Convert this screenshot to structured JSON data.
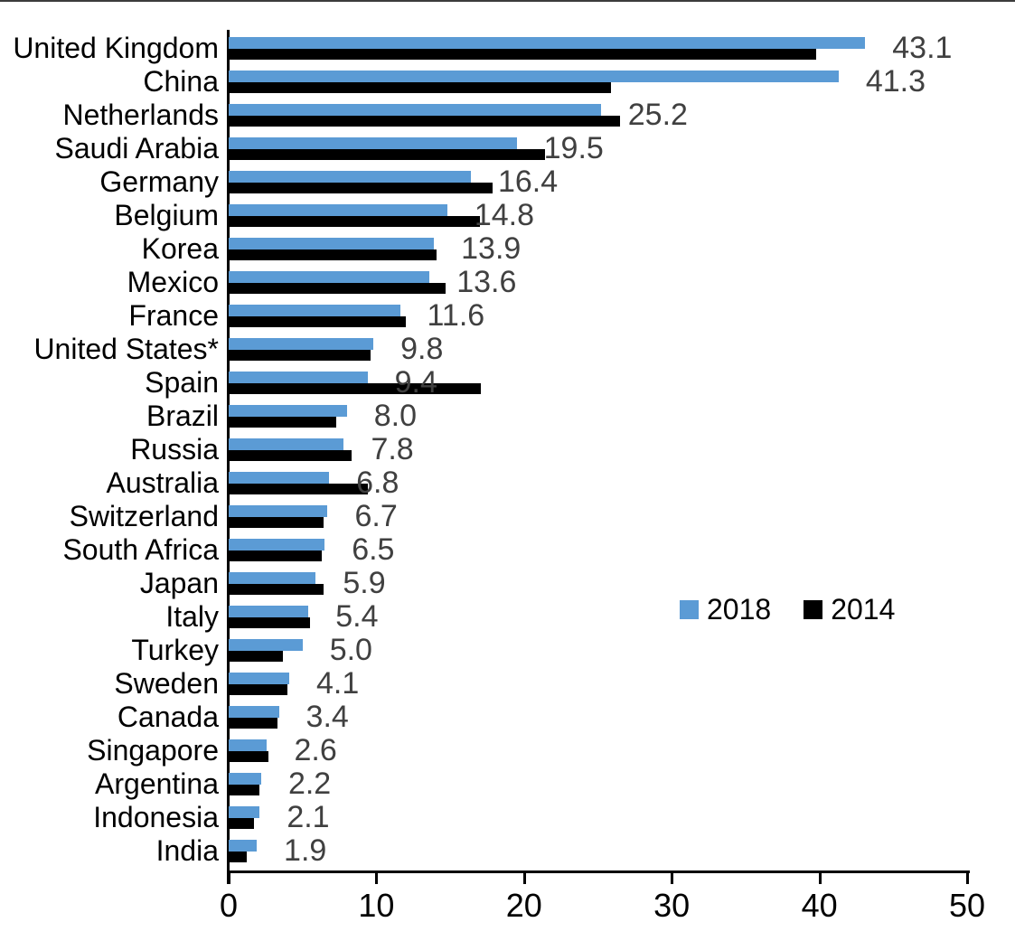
{
  "chart_data": {
    "type": "bar",
    "orientation": "horizontal",
    "title": "",
    "categories": [
      "United Kingdom",
      "China",
      "Netherlands",
      "Saudi Arabia",
      "Germany",
      "Belgium",
      "Korea",
      "Mexico",
      "France",
      "United States*",
      "Spain",
      "Brazil",
      "Russia",
      "Australia",
      "Switzerland",
      "South Africa",
      "Japan",
      "Italy",
      "Turkey",
      "Sweden",
      "Canada",
      "Singapore",
      "Argentina",
      "Indonesia",
      "India"
    ],
    "series": [
      {
        "name": "2018",
        "color": "#5B9BD5",
        "values": [
          43.1,
          41.3,
          25.2,
          19.5,
          16.4,
          14.8,
          13.9,
          13.6,
          11.6,
          9.8,
          9.4,
          8.0,
          7.8,
          6.8,
          6.7,
          6.5,
          5.9,
          5.4,
          5.0,
          4.1,
          3.4,
          2.6,
          2.2,
          2.1,
          1.9
        ],
        "labels": [
          "43.1",
          "41.3",
          "25.2",
          "19.5",
          "16.4",
          "14.8",
          "13.9",
          "13.6",
          "11.6",
          "9.8",
          "9.4",
          "8.0",
          "7.8",
          "6.8",
          "6.7",
          "6.5",
          "5.9",
          "5.4",
          "5.0",
          "4.1",
          "3.4",
          "2.6",
          "2.2",
          "2.1",
          "1.9"
        ],
        "data_labels": true
      },
      {
        "name": "2014",
        "color": "#000000",
        "values": [
          39.8,
          25.9,
          26.5,
          21.4,
          17.9,
          17.0,
          14.1,
          14.7,
          12.0,
          9.6,
          17.1,
          7.3,
          8.3,
          9.4,
          6.4,
          6.3,
          6.4,
          5.5,
          3.7,
          4.0,
          3.3,
          2.7,
          2.1,
          1.7,
          1.2
        ],
        "data_labels": false
      }
    ],
    "xlim": [
      0,
      50
    ],
    "x_ticks": [
      0,
      10,
      20,
      30,
      40,
      50
    ],
    "legend": {
      "position": "center-right",
      "entries": [
        "2018",
        "2014"
      ]
    },
    "value_label_color": "#404040",
    "axis_color": "#000000",
    "grid": false
  }
}
